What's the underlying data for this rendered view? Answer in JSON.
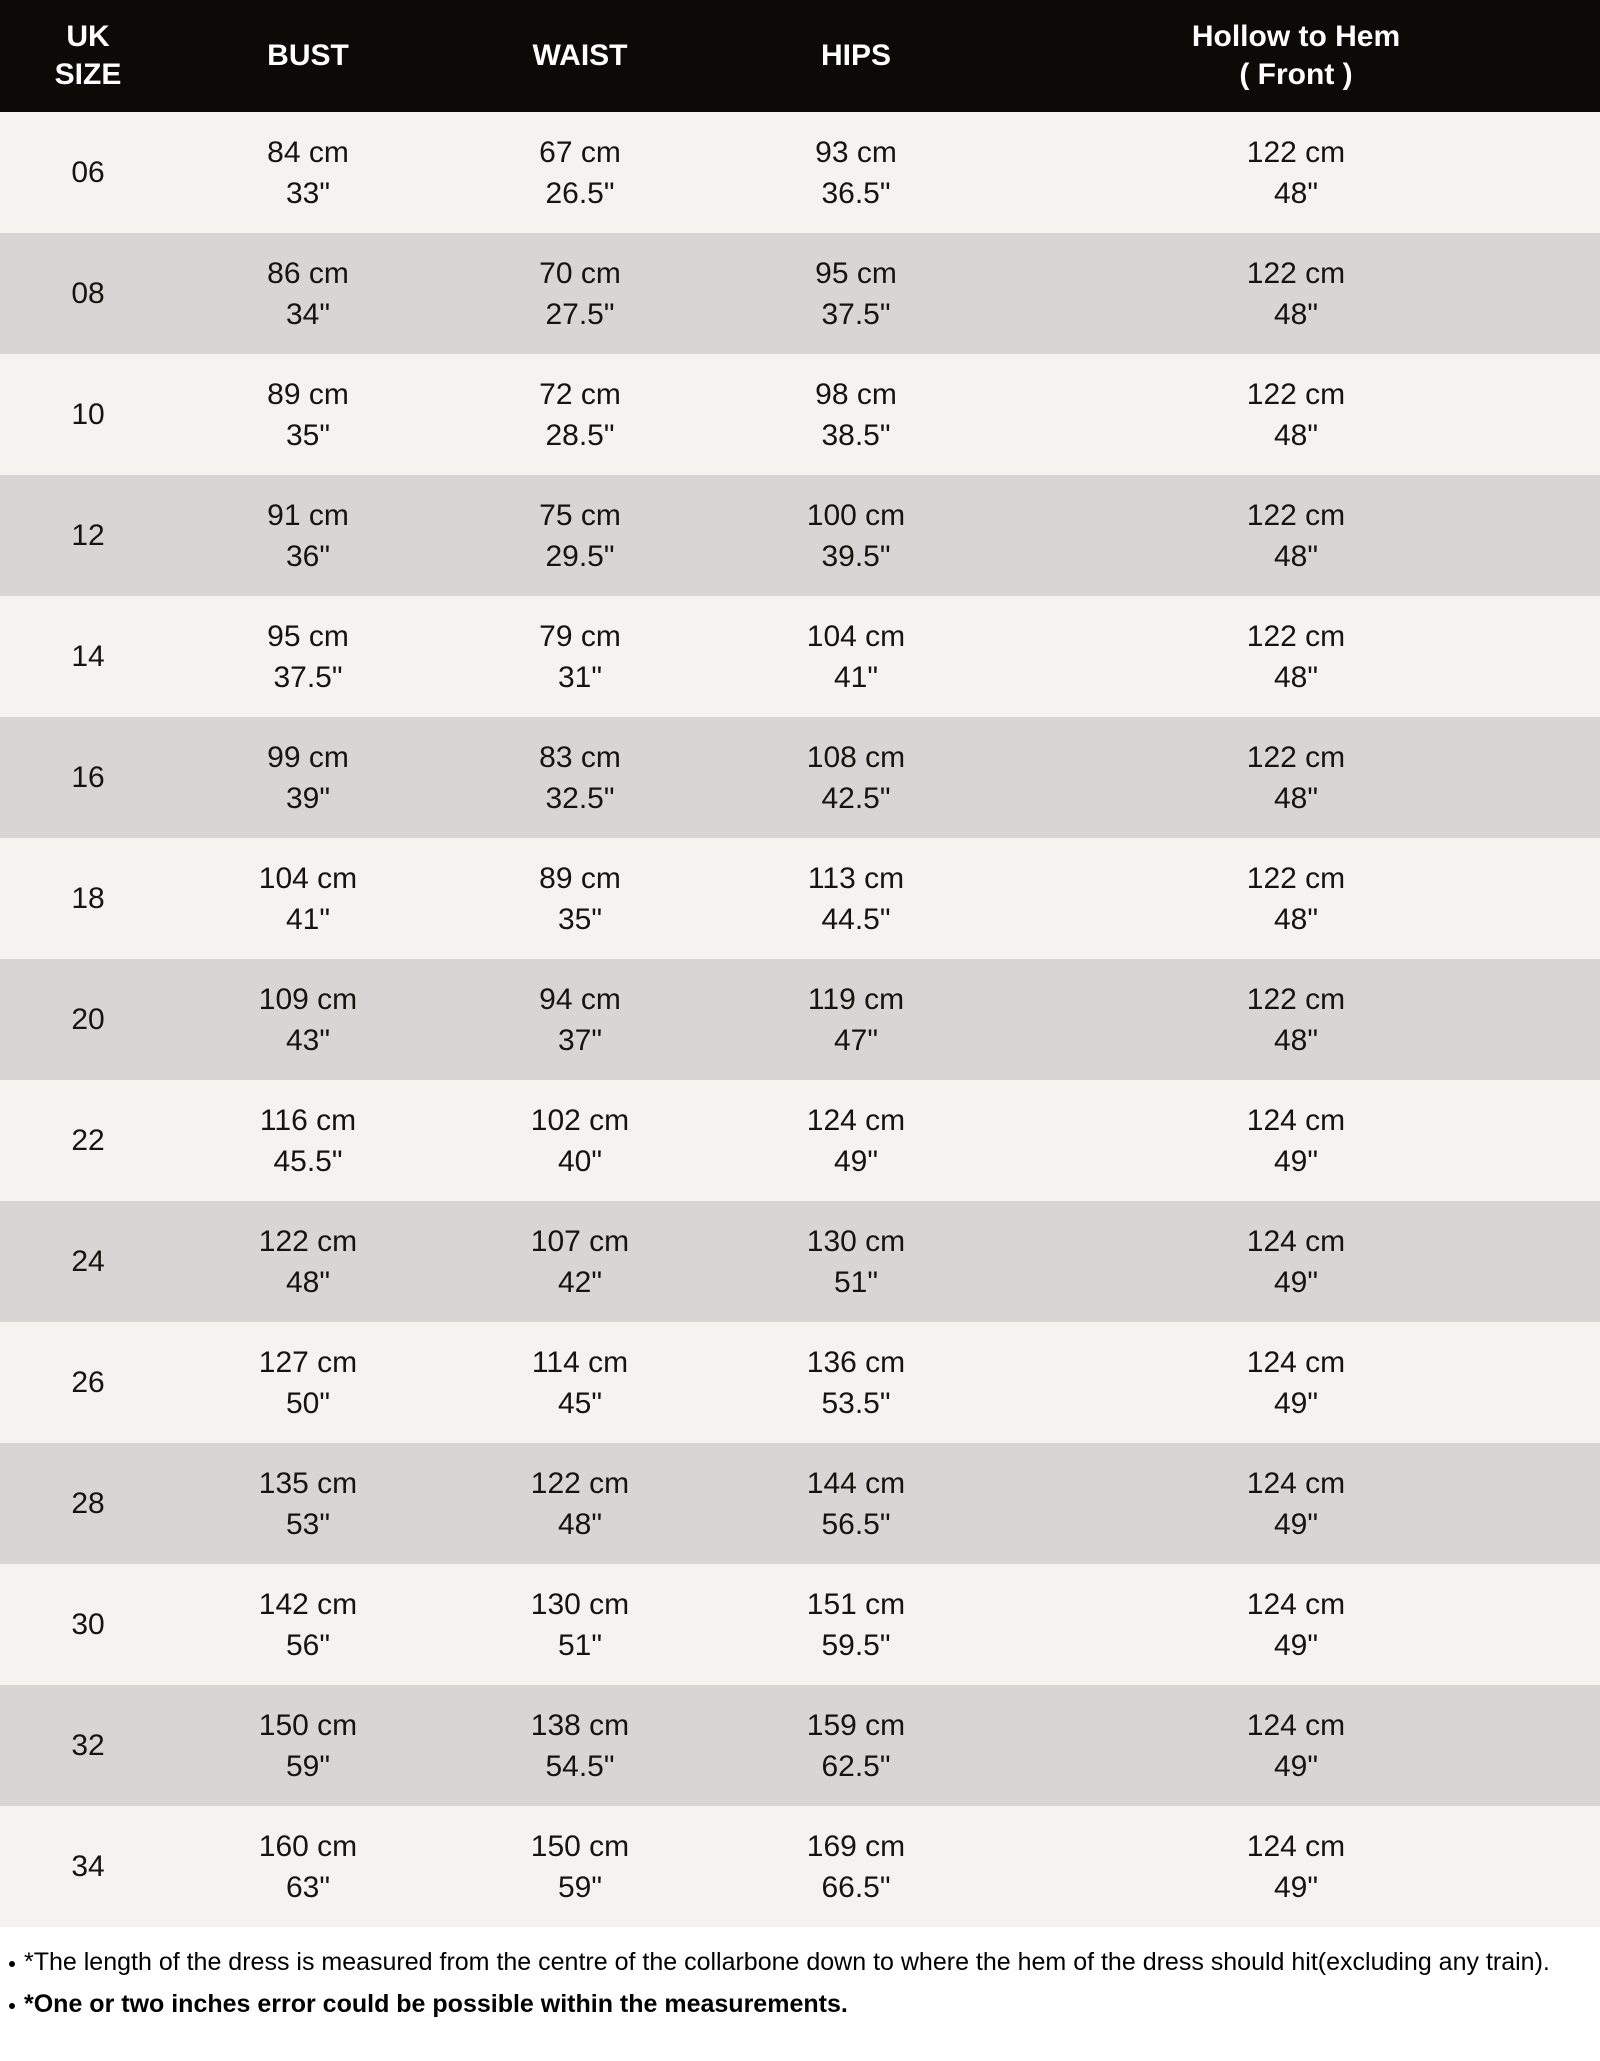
{
  "colors": {
    "header_bg": "#0c0a07",
    "header_text": "#ffffff",
    "row_light": "#f5f3f0",
    "row_dark": "#d7d6d4",
    "body_text": "#17130e",
    "notes_bg": "#ffffff"
  },
  "chart_data": {
    "type": "table",
    "columns": [
      {
        "key": "size",
        "label": "UK\nSIZE"
      },
      {
        "key": "bust",
        "label": "BUST"
      },
      {
        "key": "waist",
        "label": "WAIST"
      },
      {
        "key": "hips",
        "label": "HIPS"
      },
      {
        "key": "hem",
        "label": "Hollow to Hem\n( Front )"
      }
    ],
    "rows": [
      {
        "size": "06",
        "bust": {
          "cm": "84 cm",
          "in": "33\""
        },
        "waist": {
          "cm": "67 cm",
          "in": "26.5\""
        },
        "hips": {
          "cm": "93 cm",
          "in": "36.5\""
        },
        "hem": {
          "cm": "122 cm",
          "in": "48\""
        }
      },
      {
        "size": "08",
        "bust": {
          "cm": "86 cm",
          "in": "34\""
        },
        "waist": {
          "cm": "70 cm",
          "in": "27.5\""
        },
        "hips": {
          "cm": "95 cm",
          "in": "37.5\""
        },
        "hem": {
          "cm": "122 cm",
          "in": "48\""
        }
      },
      {
        "size": "10",
        "bust": {
          "cm": "89 cm",
          "in": "35\""
        },
        "waist": {
          "cm": "72 cm",
          "in": "28.5\""
        },
        "hips": {
          "cm": "98 cm",
          "in": "38.5\""
        },
        "hem": {
          "cm": "122 cm",
          "in": "48\""
        }
      },
      {
        "size": "12",
        "bust": {
          "cm": "91 cm",
          "in": "36\""
        },
        "waist": {
          "cm": "75 cm",
          "in": "29.5\""
        },
        "hips": {
          "cm": "100 cm",
          "in": "39.5\""
        },
        "hem": {
          "cm": "122 cm",
          "in": "48\""
        }
      },
      {
        "size": "14",
        "bust": {
          "cm": "95 cm",
          "in": "37.5\""
        },
        "waist": {
          "cm": "79 cm",
          "in": "31\""
        },
        "hips": {
          "cm": "104 cm",
          "in": "41\""
        },
        "hem": {
          "cm": "122 cm",
          "in": "48\""
        }
      },
      {
        "size": "16",
        "bust": {
          "cm": "99 cm",
          "in": "39\""
        },
        "waist": {
          "cm": "83 cm",
          "in": "32.5\""
        },
        "hips": {
          "cm": "108 cm",
          "in": "42.5\""
        },
        "hem": {
          "cm": "122 cm",
          "in": "48\""
        }
      },
      {
        "size": "18",
        "bust": {
          "cm": "104 cm",
          "in": "41\""
        },
        "waist": {
          "cm": "89 cm",
          "in": "35\""
        },
        "hips": {
          "cm": "113 cm",
          "in": "44.5\""
        },
        "hem": {
          "cm": "122 cm",
          "in": "48\""
        }
      },
      {
        "size": "20",
        "bust": {
          "cm": "109 cm",
          "in": "43\""
        },
        "waist": {
          "cm": "94 cm",
          "in": "37\""
        },
        "hips": {
          "cm": "119 cm",
          "in": "47\""
        },
        "hem": {
          "cm": "122 cm",
          "in": "48\""
        }
      },
      {
        "size": "22",
        "bust": {
          "cm": "116 cm",
          "in": "45.5\""
        },
        "waist": {
          "cm": "102 cm",
          "in": "40\""
        },
        "hips": {
          "cm": "124 cm",
          "in": "49\""
        },
        "hem": {
          "cm": "124 cm",
          "in": "49\""
        }
      },
      {
        "size": "24",
        "bust": {
          "cm": "122 cm",
          "in": "48\""
        },
        "waist": {
          "cm": "107 cm",
          "in": "42\""
        },
        "hips": {
          "cm": "130 cm",
          "in": "51\""
        },
        "hem": {
          "cm": "124 cm",
          "in": "49\""
        }
      },
      {
        "size": "26",
        "bust": {
          "cm": "127 cm",
          "in": "50\""
        },
        "waist": {
          "cm": "114 cm",
          "in": "45\""
        },
        "hips": {
          "cm": "136 cm",
          "in": "53.5\""
        },
        "hem": {
          "cm": "124 cm",
          "in": "49\""
        }
      },
      {
        "size": "28",
        "bust": {
          "cm": "135 cm",
          "in": "53\""
        },
        "waist": {
          "cm": "122 cm",
          "in": "48\""
        },
        "hips": {
          "cm": "144 cm",
          "in": "56.5\""
        },
        "hem": {
          "cm": "124 cm",
          "in": "49\""
        }
      },
      {
        "size": "30",
        "bust": {
          "cm": "142 cm",
          "in": "56\""
        },
        "waist": {
          "cm": "130 cm",
          "in": "51\""
        },
        "hips": {
          "cm": "151 cm",
          "in": "59.5\""
        },
        "hem": {
          "cm": "124 cm",
          "in": "49\""
        }
      },
      {
        "size": "32",
        "bust": {
          "cm": "150 cm",
          "in": "59\""
        },
        "waist": {
          "cm": "138 cm",
          "in": "54.5\""
        },
        "hips": {
          "cm": "159 cm",
          "in": "62.5\""
        },
        "hem": {
          "cm": "124 cm",
          "in": "49\""
        }
      },
      {
        "size": "34",
        "bust": {
          "cm": "160 cm",
          "in": "63\""
        },
        "waist": {
          "cm": "150 cm",
          "in": "59\""
        },
        "hips": {
          "cm": "169 cm",
          "in": "66.5\""
        },
        "hem": {
          "cm": "124 cm",
          "in": "49\""
        }
      }
    ]
  },
  "notes": [
    {
      "text": "*The length of the dress is measured from the centre of the collarbone down to where the hem of the dress should hit(excluding any train).",
      "bold": false
    },
    {
      "text": "*One or two inches error could be possible within the measurements.",
      "bold": true
    }
  ]
}
